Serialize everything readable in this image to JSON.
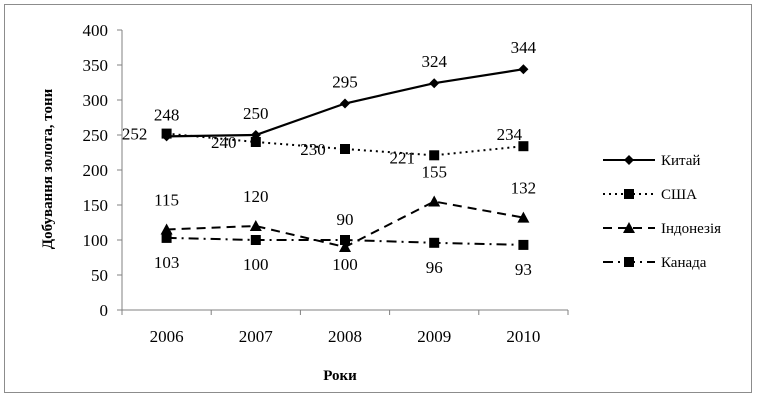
{
  "chart_data": {
    "type": "line",
    "title": "",
    "xlabel": "Роки",
    "ylabel": "Добування золота, тони",
    "categories": [
      "2006",
      "2007",
      "2008",
      "2009",
      "2010"
    ],
    "ylim": [
      0,
      400
    ],
    "yticks": [
      "0",
      "50",
      "100",
      "150",
      "200",
      "250",
      "300",
      "350",
      "400"
    ],
    "grid": false,
    "legend_position": "right",
    "series": [
      {
        "name": "Китай",
        "values": [
          248,
          250,
          295,
          324,
          344
        ],
        "labels": [
          "248",
          "250",
          "295",
          "324",
          "344"
        ],
        "marker": "diamond",
        "dash": "solid"
      },
      {
        "name": "США",
        "values": [
          252,
          240,
          230,
          221,
          234
        ],
        "labels": [
          "252",
          "240",
          "230",
          "221",
          "234"
        ],
        "marker": "square",
        "dash": "dotted"
      },
      {
        "name": "Індонезія",
        "values": [
          115,
          120,
          90,
          155,
          132
        ],
        "labels": [
          "115",
          "120",
          "90",
          "155",
          "132"
        ],
        "marker": "triangle",
        "dash": "dashed"
      },
      {
        "name": "Канада",
        "values": [
          103,
          100,
          100,
          96,
          93
        ],
        "labels": [
          "103",
          "100",
          "100",
          "96",
          "93"
        ],
        "marker": "square",
        "dash": "dashdot"
      }
    ]
  }
}
